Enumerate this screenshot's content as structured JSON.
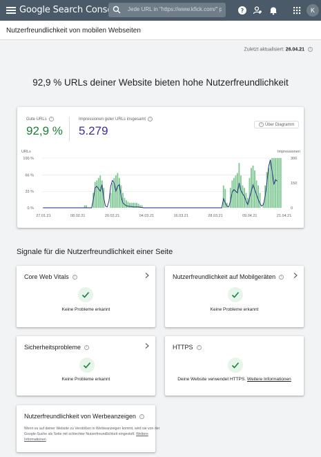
{
  "topbar": {
    "brand": "Google Search Console",
    "search_placeholder": "Jede URL in \"https://www.kfick.com/\" p",
    "avatar_initial": "K",
    "colors": {
      "bar": "#4a5a68",
      "avatar": "#6f7d89"
    },
    "icons": [
      "menu-icon",
      "search-icon",
      "help-icon",
      "manage-users-icon",
      "notifications-icon",
      "apps-icon"
    ]
  },
  "header": {
    "title": "Nutzerfreundlichkeit von mobilen Webseiten"
  },
  "updated": {
    "label": "Zuletzt aktualisiert:",
    "date": "26.04.21"
  },
  "hero": {
    "headline": "92,9 % URLs deiner Website bieten hohe Nutzerfreundlichkeit"
  },
  "stats": {
    "good_urls": {
      "label": "Gute URLs",
      "value": "92,9 %",
      "color": "#188038"
    },
    "impressions": {
      "label": "Impressionen guter URLs insgesamt",
      "value": "5.279",
      "color": "#3c2c9e"
    },
    "about_chart": "Über Diagramm"
  },
  "chart_data": {
    "type": "bar",
    "left_axis": {
      "label": "URLs",
      "ticks": [
        "100 %",
        "66 %",
        "33 %",
        "0 %"
      ],
      "values": [
        100,
        66,
        33,
        0
      ]
    },
    "right_axis": {
      "label": "Impressionen",
      "ticks": [
        "300",
        "150",
        "0"
      ],
      "values": [
        300,
        150,
        0
      ],
      "max": 300
    },
    "x_tick_labels": [
      "27.01.21",
      "08.02.21",
      "20.02.21",
      "04.03.21",
      "16.03.21",
      "28.03.21",
      "09.04.21",
      "21.04.21"
    ],
    "day_count": 90,
    "bar_color": "#81c995",
    "line_color": "#1a237e",
    "bars_good_url_percent": [
      0,
      0,
      0,
      0,
      0,
      0,
      0,
      0,
      0,
      0,
      0,
      0,
      0,
      0,
      0,
      0,
      0,
      0,
      0,
      0,
      0,
      0,
      0,
      0,
      5,
      5,
      0,
      0,
      0,
      30,
      52,
      55,
      60,
      65,
      55,
      40,
      0,
      0,
      0,
      30,
      50,
      60,
      65,
      70,
      60,
      45,
      30,
      20,
      15,
      12,
      10,
      10,
      10,
      10,
      10,
      8,
      5,
      5,
      0,
      0,
      0,
      0,
      0,
      0,
      0,
      0,
      0,
      0,
      0,
      0,
      0,
      0,
      0,
      0,
      0,
      0,
      0,
      0,
      0,
      0,
      0,
      0,
      0,
      0,
      0,
      0,
      0,
      0,
      0,
      0,
      0,
      0,
      0,
      0,
      0,
      0,
      0,
      0,
      0,
      0,
      0,
      0,
      0,
      0,
      45,
      38,
      10,
      0,
      40,
      55,
      60,
      65,
      70,
      90,
      65,
      45,
      40,
      30,
      20,
      60,
      80,
      85,
      75,
      55,
      45,
      30,
      0,
      10,
      45,
      72,
      80,
      95,
      100,
      100,
      100,
      100,
      100,
      100
    ],
    "line_impressions": [
      0,
      0,
      0,
      0,
      0,
      0,
      0,
      0,
      0,
      0,
      0,
      0,
      0,
      0,
      0,
      0,
      0,
      0,
      0,
      0,
      0,
      0,
      0,
      0,
      0,
      0,
      0,
      0,
      0,
      50,
      120,
      130,
      115,
      100,
      140,
      60,
      10,
      5,
      40,
      130,
      165,
      150,
      100,
      130,
      140,
      70,
      30,
      20,
      12,
      10,
      8,
      8,
      5,
      5,
      5,
      5,
      3,
      2,
      0,
      0,
      0,
      0,
      0,
      0,
      0,
      0,
      0,
      0,
      0,
      0,
      0,
      0,
      0,
      0,
      0,
      0,
      0,
      0,
      0,
      0,
      0,
      0,
      0,
      0,
      0,
      0,
      0,
      0,
      0,
      0,
      0,
      0,
      0,
      0,
      0,
      0,
      0,
      0,
      0,
      0,
      0,
      0,
      0,
      0,
      55,
      30,
      10,
      5,
      40,
      95,
      110,
      100,
      90,
      150,
      105,
      85,
      70,
      40,
      20,
      60,
      100,
      140,
      110,
      80,
      50,
      25,
      10,
      20,
      70,
      150,
      250,
      290,
      220,
      140,
      170,
      160
    ]
  },
  "signals": {
    "title": "Signale für die Nutzerfreundlichkeit einer Seite",
    "cards": [
      {
        "title": "Core Web Vitals",
        "message": "Keine Probleme erkannt"
      },
      {
        "title": "Nutzerfreundlichkeit auf Mobilgeräten",
        "message": "Keine Probleme erkannt"
      },
      {
        "title": "Sicherheitsprobleme",
        "message": "Keine Probleme erkannt"
      },
      {
        "title": "HTTPS",
        "message": "Deine Website verwendet HTTPS.",
        "link": "Weitere Informationen"
      }
    ],
    "ads": {
      "title": "Nutzerfreundlichkeit von Werbeanzeigen",
      "text": "Wenn es auf deiner Website zu Verstößen in Werbeanzeigen kommt, wird sie von der Google-Suche als Seite mit schlechter Nutzerfreundlichkeit eingestuft.",
      "link": "Weitere Informationen"
    },
    "check_color": "#188038"
  }
}
